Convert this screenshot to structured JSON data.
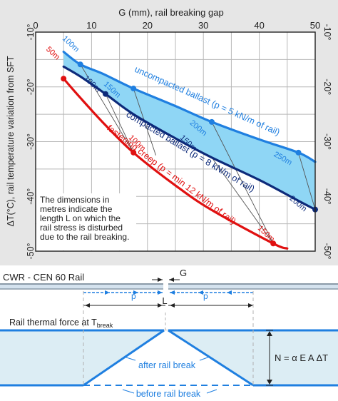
{
  "chart_data": {
    "type": "line",
    "top_axis_label": "G (mm), rail breaking gap",
    "x_ticks": [
      "0",
      "10",
      "20",
      "30",
      "40",
      "50"
    ],
    "xlim": [
      0,
      50
    ],
    "ylabel": "ΔT(°C), rail temperature variation from SFT",
    "y_ticks": [
      "-10°",
      "-20°",
      "-30°",
      "-40°",
      "-50°"
    ],
    "ylim": [
      -50,
      -10
    ],
    "grid": true,
    "colors": {
      "uncompacted": "#1f7fe0",
      "compacted": "#0d2a7a",
      "creep": "#e01010",
      "band": "#8fd6f5",
      "box": "#e6e6e6",
      "guide": "#444444"
    },
    "series": [
      {
        "key": "uncompacted",
        "name": "uncompacted ballast (p = 5 kN/m of rail)",
        "points": [
          [
            5,
            -13.6
          ],
          [
            8,
            -15.9
          ],
          [
            12,
            -17.6
          ],
          [
            17.5,
            -20.3
          ],
          [
            25,
            -23.5
          ],
          [
            31.5,
            -26.4
          ],
          [
            40,
            -29.6
          ],
          [
            47,
            -32
          ],
          [
            50,
            -33.7
          ]
        ]
      },
      {
        "key": "compacted",
        "name": "compacted ballast (p = 8 kN/m of rail)",
        "points": [
          [
            5,
            -16.3
          ],
          [
            8,
            -18.1
          ],
          [
            12.5,
            -21.3
          ],
          [
            17.5,
            -25
          ],
          [
            25,
            -29.4
          ],
          [
            31.5,
            -32.9
          ],
          [
            40,
            -37
          ],
          [
            47,
            -40.8
          ],
          [
            50,
            -42.4
          ]
        ]
      },
      {
        "key": "creep",
        "name": "fastening creep (p = min 12 kN/m of rail)",
        "points": [
          [
            5,
            -18.5
          ],
          [
            8,
            -22
          ],
          [
            12.5,
            -27
          ],
          [
            17.5,
            -32
          ],
          [
            25,
            -38
          ],
          [
            31.5,
            -42.5
          ],
          [
            42.5,
            -48.6
          ],
          [
            45,
            -49.5
          ]
        ]
      }
    ],
    "labels": [
      "50m",
      "100m",
      "150m",
      "200m",
      "250m",
      "100m",
      "150m",
      "200m",
      "50m",
      "100m",
      "150m",
      "100m",
      "150m",
      "200m"
    ],
    "note": "The dimensions in metres indicate the length L on which the rail stress is disturbed due to the rail breaking."
  },
  "diagram": {
    "rail_title": "CWR - CEN 60 Rail",
    "gap_label": "G",
    "p_label": "p",
    "length_label": "L",
    "force_title_main": "Rail thermal force at T",
    "force_title_sub": "break",
    "after_label": "after rail break",
    "before_label": "before rail break",
    "formula": "N = α E A ΔT"
  }
}
